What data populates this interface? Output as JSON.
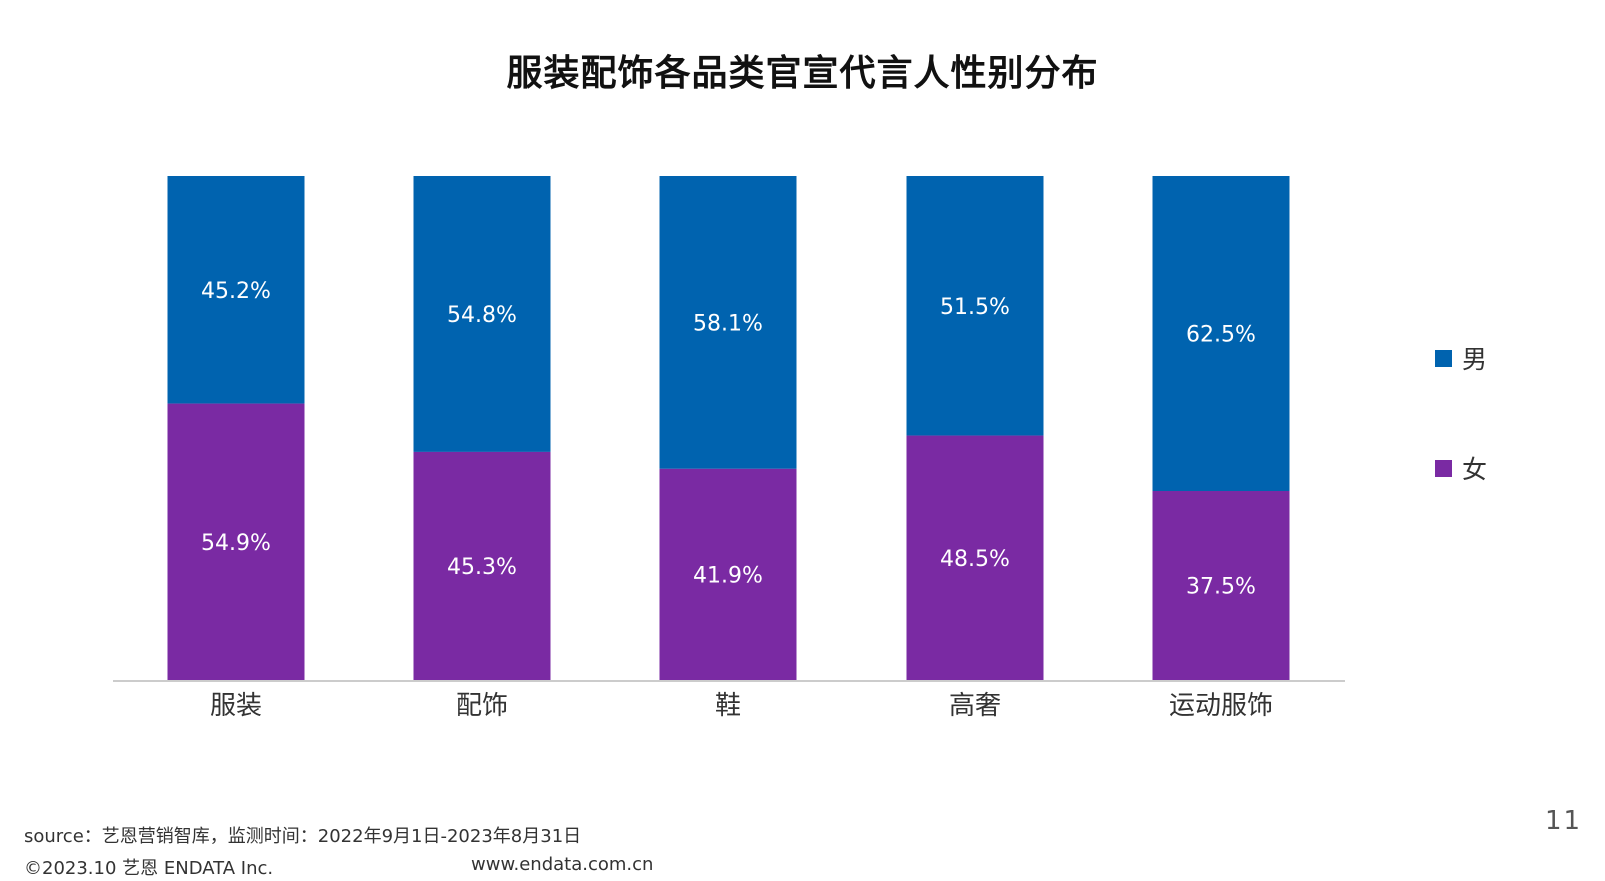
{
  "chart_data": {
    "type": "bar",
    "stacked": true,
    "title": "服装配饰各品类官宣代言人性别分布",
    "categories": [
      "服装",
      "配饰",
      "鞋",
      "高奢",
      "运动服饰"
    ],
    "series": [
      {
        "name": "男",
        "color": "#0063AF",
        "values": [
          45.2,
          54.8,
          58.1,
          51.5,
          62.5
        ],
        "labels": [
          "45.2%",
          "54.8%",
          "58.1%",
          "51.5%",
          "62.5%"
        ]
      },
      {
        "name": "女",
        "color": "#7A2AA3",
        "values": [
          54.9,
          45.3,
          41.9,
          48.5,
          37.5
        ],
        "labels": [
          "54.9%",
          "45.3%",
          "41.9%",
          "48.5%",
          "37.5%"
        ]
      }
    ],
    "ylim": [
      0,
      100
    ],
    "grid": false,
    "legend_position": "right"
  },
  "footer": {
    "source": "source：艺恩营销智库，监测时间：2022年9月1日-2023年8月31日",
    "copyright": "©2023.10  艺恩  ENDATA Inc.",
    "website": "www.endata.com.cn"
  },
  "page_number": "11",
  "colors": {
    "axis_line": "#cccccc",
    "label_text": "#ffffff",
    "category_text": "#333333"
  }
}
